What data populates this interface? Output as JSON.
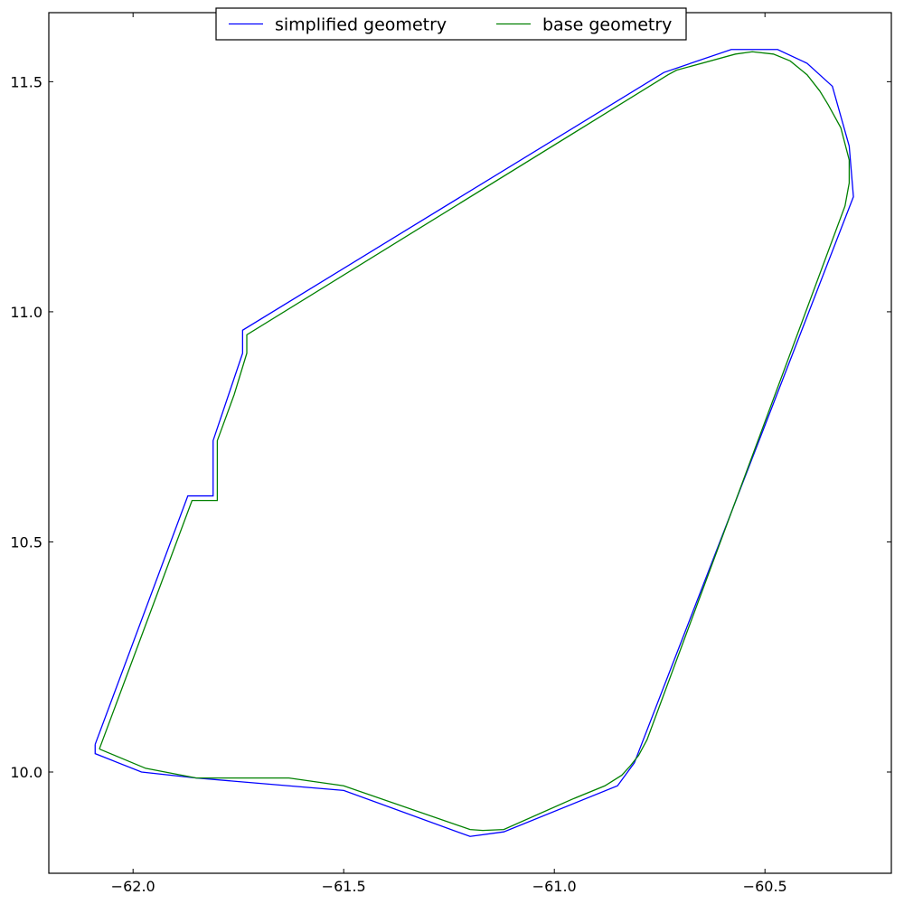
{
  "chart_data": {
    "type": "line",
    "title": "",
    "xlabel": "",
    "ylabel": "",
    "xlim": [
      -62.2,
      -60.2
    ],
    "ylim": [
      9.78,
      11.65
    ],
    "xticks": [
      -62.0,
      -61.5,
      -61.0,
      -60.5
    ],
    "xtick_labels": [
      "−62.0",
      "−61.5",
      "−61.0",
      "−60.5"
    ],
    "yticks": [
      10.0,
      10.5,
      11.0,
      11.5
    ],
    "ytick_labels": [
      "10.0",
      "10.5",
      "11.0",
      "11.5"
    ],
    "grid": false,
    "legend": {
      "placement": "upper-center",
      "columns": 2,
      "entries": [
        "simplified geometry",
        "base geometry"
      ]
    },
    "series": [
      {
        "name": "simplified geometry",
        "color": "#0000ff",
        "x": [
          -62.09,
          -62.09,
          -61.98,
          -61.85,
          -61.5,
          -61.2,
          -61.12,
          -60.85,
          -60.81,
          -60.29,
          -60.3,
          -60.34,
          -60.4,
          -60.47,
          -60.58,
          -60.74,
          -61.74,
          -61.74,
          -61.81,
          -61.81,
          -61.87,
          -62.09
        ],
        "y": [
          10.06,
          10.04,
          10.0,
          9.987,
          9.96,
          9.86,
          9.87,
          9.97,
          10.02,
          11.25,
          11.36,
          11.49,
          11.54,
          11.57,
          11.57,
          11.52,
          10.96,
          10.91,
          10.72,
          10.6,
          10.6,
          10.06
        ]
      },
      {
        "name": "base geometry",
        "color": "#008000",
        "x": [
          -62.08,
          -61.97,
          -61.85,
          -61.63,
          -61.5,
          -61.2,
          -61.17,
          -61.12,
          -60.96,
          -60.88,
          -60.84,
          -60.82,
          -60.8,
          -60.78,
          -60.31,
          -60.3,
          -60.3,
          -60.32,
          -60.35,
          -60.37,
          -60.4,
          -60.44,
          -60.48,
          -60.53,
          -60.57,
          -60.71,
          -60.73,
          -61.73,
          -61.73,
          -61.76,
          -61.8,
          -61.8,
          -61.86,
          -62.08
        ],
        "y": [
          10.05,
          10.008,
          9.987,
          9.987,
          9.97,
          9.875,
          9.873,
          9.875,
          9.94,
          9.97,
          9.993,
          10.013,
          10.036,
          10.07,
          11.23,
          11.28,
          11.33,
          11.4,
          11.45,
          11.48,
          11.515,
          11.545,
          11.56,
          11.565,
          11.56,
          11.525,
          11.515,
          10.95,
          10.91,
          10.82,
          10.72,
          10.59,
          10.59,
          10.05
        ]
      }
    ]
  }
}
